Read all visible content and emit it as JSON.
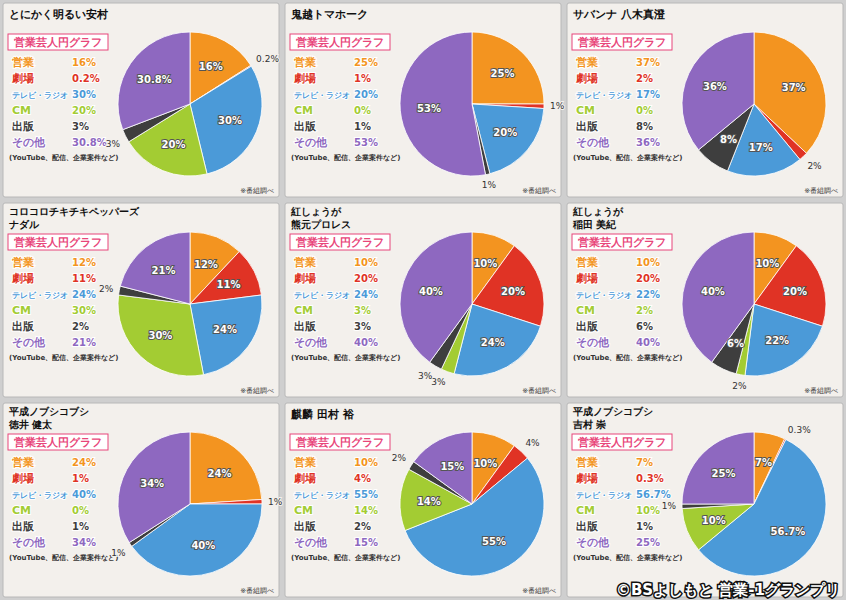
{
  "chart_data": [
    {
      "type": "pie",
      "title": [
        "とにかく明るい安村"
      ],
      "subtitle": "営業芸人円グラフ",
      "categories": [
        "営業",
        "劇場",
        "テレビ・ラジオ",
        "CM",
        "出版",
        "その他"
      ],
      "values": [
        16,
        0.2,
        30,
        20,
        3,
        30.8
      ],
      "value_labels": [
        "16%",
        "0.2%",
        "30%",
        "20%",
        "3%",
        "30.8%"
      ],
      "colors": [
        "#f39420",
        "#e03325",
        "#4b9ad8",
        "#a3cc33",
        "#3e3e3e",
        "#8e68c0"
      ],
      "data_labels": true,
      "annotations": [
        "(YouTube、配信、企業案件など)",
        "※番組調べ"
      ]
    },
    {
      "type": "pie",
      "title": [
        "鬼越トマホーク"
      ],
      "subtitle": "営業芸人円グラフ",
      "categories": [
        "営業",
        "劇場",
        "テレビ・ラジオ",
        "CM",
        "出版",
        "その他"
      ],
      "values": [
        25,
        1,
        20,
        0,
        1,
        53
      ],
      "value_labels": [
        "25%",
        "1%",
        "20%",
        "0%",
        "1%",
        "53%"
      ],
      "colors": [
        "#f39420",
        "#e03325",
        "#4b9ad8",
        "#a3cc33",
        "#3e3e3e",
        "#8e68c0"
      ],
      "data_labels": true,
      "annotations": [
        "(YouTube、配信、企業案件など)",
        "※番組調べ"
      ]
    },
    {
      "type": "pie",
      "title": [
        "サバンナ 八木真澄"
      ],
      "subtitle": "営業芸人円グラフ",
      "categories": [
        "営業",
        "劇場",
        "テレビ・ラジオ",
        "CM",
        "出版",
        "その他"
      ],
      "values": [
        37,
        2,
        17,
        0,
        8,
        36
      ],
      "value_labels": [
        "37%",
        "2%",
        "17%",
        "0%",
        "8%",
        "36%"
      ],
      "colors": [
        "#f39420",
        "#e03325",
        "#4b9ad8",
        "#a3cc33",
        "#3e3e3e",
        "#8e68c0"
      ],
      "data_labels": true,
      "annotations": [
        "(YouTube、配信、企業案件など)",
        "※番組調べ"
      ]
    },
    {
      "type": "pie",
      "title": [
        "コロコロチキチキペッパーズ",
        "ナダル"
      ],
      "subtitle": "営業芸人円グラフ",
      "categories": [
        "営業",
        "劇場",
        "テレビ・ラジオ",
        "CM",
        "出版",
        "その他"
      ],
      "values": [
        12,
        11,
        24,
        30,
        2,
        21
      ],
      "value_labels": [
        "12%",
        "11%",
        "24%",
        "30%",
        "2%",
        "21%"
      ],
      "colors": [
        "#f39420",
        "#e03325",
        "#4b9ad8",
        "#a3cc33",
        "#3e3e3e",
        "#8e68c0"
      ],
      "data_labels": true,
      "annotations": [
        "(YouTube、配信、企業案件など)",
        "※番組調べ"
      ]
    },
    {
      "type": "pie",
      "title": [
        "紅しょうが",
        "熊元プロレス"
      ],
      "subtitle": "営業芸人円グラフ",
      "categories": [
        "営業",
        "劇場",
        "テレビ・ラジオ",
        "CM",
        "出版",
        "その他"
      ],
      "values": [
        10,
        20,
        24,
        3,
        3,
        40
      ],
      "value_labels": [
        "10%",
        "20%",
        "24%",
        "3%",
        "3%",
        "40%"
      ],
      "colors": [
        "#f39420",
        "#e03325",
        "#4b9ad8",
        "#a3cc33",
        "#3e3e3e",
        "#8e68c0"
      ],
      "data_labels": true,
      "annotations": [
        "(YouTube、配信、企業案件など)",
        "※番組調べ"
      ]
    },
    {
      "type": "pie",
      "title": [
        "紅しょうが",
        "稲田 美紀"
      ],
      "subtitle": "営業芸人円グラフ",
      "categories": [
        "営業",
        "劇場",
        "テレビ・ラジオ",
        "CM",
        "出版",
        "その他"
      ],
      "values": [
        10,
        20,
        22,
        2,
        6,
        40
      ],
      "value_labels": [
        "10%",
        "20%",
        "22%",
        "2%",
        "6%",
        "40%"
      ],
      "colors": [
        "#f39420",
        "#e03325",
        "#4b9ad8",
        "#a3cc33",
        "#3e3e3e",
        "#8e68c0"
      ],
      "data_labels": true,
      "annotations": [
        "(YouTube、配信、企業案件など)",
        "※番組調べ"
      ]
    },
    {
      "type": "pie",
      "title": [
        "平成ノブシコブシ",
        "徳井 健太"
      ],
      "subtitle": "営業芸人円グラフ",
      "categories": [
        "営業",
        "劇場",
        "テレビ・ラジオ",
        "CM",
        "出版",
        "その他"
      ],
      "values": [
        24,
        1,
        40,
        0,
        1,
        34
      ],
      "value_labels": [
        "24%",
        "1%",
        "40%",
        "0%",
        "1%",
        "34%"
      ],
      "colors": [
        "#f39420",
        "#e03325",
        "#4b9ad8",
        "#a3cc33",
        "#3e3e3e",
        "#8e68c0"
      ],
      "data_labels": true,
      "annotations": [
        "(YouTube、配信、企業案件など)",
        "※番組調べ"
      ]
    },
    {
      "type": "pie",
      "title": [
        "麒麟 田村 裕"
      ],
      "subtitle": "営業芸人円グラフ",
      "categories": [
        "営業",
        "劇場",
        "テレビ・ラジオ",
        "CM",
        "出版",
        "その他"
      ],
      "values": [
        10,
        4,
        55,
        14,
        2,
        15
      ],
      "value_labels": [
        "10%",
        "4%",
        "55%",
        "14%",
        "2%",
        "15%"
      ],
      "colors": [
        "#f39420",
        "#e03325",
        "#4b9ad8",
        "#a3cc33",
        "#3e3e3e",
        "#8e68c0"
      ],
      "data_labels": true,
      "annotations": [
        "(YouTube、配信、企業案件など)",
        "※番組調べ"
      ]
    },
    {
      "type": "pie",
      "title": [
        "平成ノブシコブシ",
        "吉村 崇"
      ],
      "subtitle": "営業芸人円グラフ",
      "categories": [
        "営業",
        "劇場",
        "テレビ・ラジオ",
        "CM",
        "出版",
        "その他"
      ],
      "values": [
        7,
        0.3,
        56.7,
        10,
        1,
        25
      ],
      "value_labels": [
        "7%",
        "0.3%",
        "56.7%",
        "10%",
        "1%",
        "25%"
      ],
      "colors": [
        "#f39420",
        "#e03325",
        "#4b9ad8",
        "#a3cc33",
        "#3e3e3e",
        "#8e68c0"
      ],
      "data_labels": true,
      "annotations": [
        "(YouTube、配信、企業案件など)"
      ]
    }
  ],
  "footer": "©BSよしもと 営業-1グランプリ"
}
